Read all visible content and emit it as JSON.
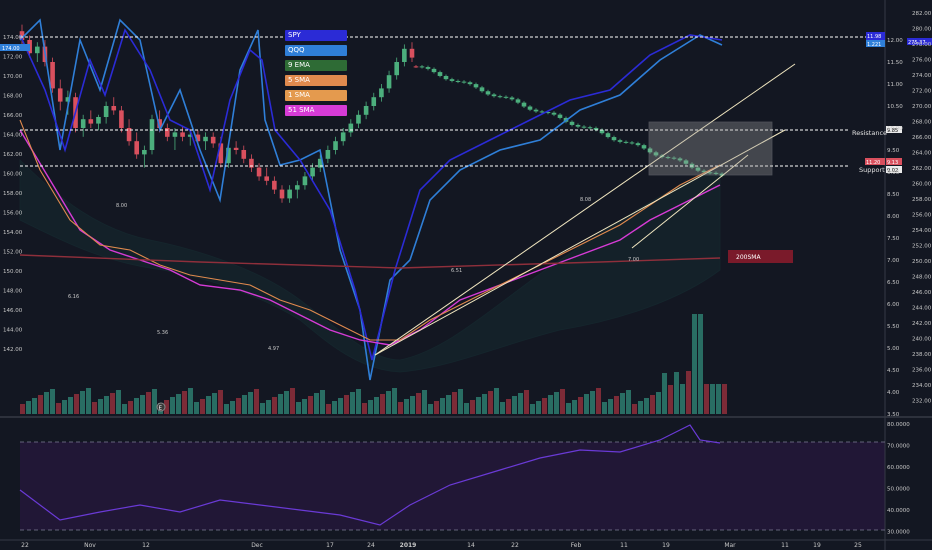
{
  "chart_data": {
    "type": "candlestick",
    "axes": {
      "left_ticks": [
        "174.00",
        "172.00",
        "170.00",
        "168.00",
        "166.00",
        "164.00",
        "162.00",
        "160.00",
        "158.00",
        "156.00",
        "154.00",
        "152.00",
        "150.00",
        "148.00",
        "146.00",
        "144.00",
        "142.00"
      ],
      "right_ticks_outer": [
        "282.00",
        "280.00",
        "278.00",
        "276.00",
        "274.00",
        "272.00",
        "270.00",
        "268.00",
        "266.00",
        "264.00",
        "262.00",
        "260.00",
        "258.00",
        "256.00",
        "254.00",
        "252.00",
        "250.00",
        "248.00",
        "246.00",
        "244.00",
        "242.00",
        "240.00",
        "238.00",
        "236.00",
        "234.00",
        "232.00"
      ],
      "right_ticks_inner": [
        "12.00",
        "11.50",
        "11.00",
        "10.50",
        "10.00",
        "9.50",
        "9.00",
        "8.50",
        "8.00",
        "7.50",
        "7.00",
        "6.50",
        "6.00",
        "5.50",
        "5.00",
        "4.50",
        "4.00",
        "3.50"
      ],
      "x_ticks": [
        "22",
        "Nov",
        "12",
        "Dec",
        "17",
        "24",
        "2019",
        "14",
        "22",
        "Feb",
        "11",
        "19",
        "Mar",
        "11",
        "19",
        "25"
      ],
      "rsi_ticks": [
        "80.0000",
        "70.0000",
        "60.0000",
        "50.0000",
        "40.0000",
        "30.0000"
      ]
    },
    "legend": [
      {
        "label": "SPY",
        "color": "#2b2bd6"
      },
      {
        "label": "QQQ",
        "color": "#2f7fd8"
      },
      {
        "label": "9 EMA",
        "color": "#2e6b35"
      },
      {
        "label": "5 SMA",
        "color": "#e08a4e"
      },
      {
        "label": "1 SMA",
        "color": "#e49a4e"
      },
      {
        "label": "51 SMA",
        "color": "#d63bd6"
      }
    ],
    "annotations": {
      "resistance": "Resistance",
      "support": "Support",
      "sma200": "200SMA",
      "e_marker": "E"
    },
    "price_labels": {
      "left_tag": "174.00",
      "right_tag_a": "11.98",
      "right_tag_b": "1.221",
      "right_tag_c": "275.37",
      "res_tag": "9.85",
      "sup_tag1": "11.20",
      "sup_tag2": "9.13",
      "sup_tag3": "9.02"
    },
    "point_labels": [
      "8.00",
      "6.16",
      "5.36",
      "4.97",
      "6.51",
      "8.08",
      "7.00"
    ],
    "candles": [
      [
        12.2,
        12.35,
        11.9,
        12.0
      ],
      [
        12.0,
        12.1,
        11.6,
        11.7
      ],
      [
        11.7,
        11.95,
        11.5,
        11.85
      ],
      [
        11.85,
        12.0,
        11.4,
        11.5
      ],
      [
        11.5,
        11.6,
        10.8,
        10.9
      ],
      [
        10.9,
        11.1,
        10.4,
        10.6
      ],
      [
        10.6,
        10.85,
        10.3,
        10.7
      ],
      [
        10.7,
        10.8,
        9.9,
        10.0
      ],
      [
        10.0,
        10.3,
        9.8,
        10.2
      ],
      [
        10.2,
        10.4,
        10.0,
        10.1
      ],
      [
        10.1,
        10.3,
        9.95,
        10.25
      ],
      [
        10.25,
        10.6,
        10.1,
        10.5
      ],
      [
        10.5,
        10.7,
        10.3,
        10.4
      ],
      [
        10.4,
        10.5,
        9.9,
        10.0
      ],
      [
        10.0,
        10.2,
        9.6,
        9.7
      ],
      [
        9.7,
        9.9,
        9.3,
        9.4
      ],
      [
        9.4,
        9.6,
        9.1,
        9.5
      ],
      [
        9.5,
        10.3,
        9.4,
        10.2
      ],
      [
        10.2,
        10.4,
        9.9,
        10.0
      ],
      [
        10.0,
        10.1,
        9.7,
        9.8
      ],
      [
        9.8,
        10.0,
        9.5,
        9.9
      ],
      [
        9.9,
        10.05,
        9.7,
        9.8
      ],
      [
        9.8,
        9.95,
        9.6,
        9.85
      ],
      [
        9.85,
        9.95,
        9.6,
        9.7
      ],
      [
        9.7,
        9.9,
        9.5,
        9.8
      ],
      [
        9.8,
        9.9,
        9.55,
        9.65
      ],
      [
        9.65,
        9.8,
        9.1,
        9.2
      ],
      [
        9.2,
        9.6,
        9.1,
        9.55
      ],
      [
        9.55,
        9.7,
        9.4,
        9.5
      ],
      [
        9.5,
        9.6,
        9.2,
        9.3
      ],
      [
        9.3,
        9.4,
        9.0,
        9.1
      ],
      [
        9.1,
        9.2,
        8.8,
        8.9
      ],
      [
        8.9,
        9.1,
        8.7,
        8.8
      ],
      [
        8.8,
        8.9,
        8.5,
        8.6
      ],
      [
        8.6,
        8.7,
        8.3,
        8.4
      ],
      [
        8.4,
        8.7,
        8.3,
        8.6
      ],
      [
        8.6,
        8.8,
        8.4,
        8.7
      ],
      [
        8.7,
        9.0,
        8.6,
        8.9
      ],
      [
        8.9,
        9.2,
        8.8,
        9.1
      ],
      [
        9.1,
        9.4,
        9.0,
        9.3
      ],
      [
        9.3,
        9.6,
        9.2,
        9.5
      ],
      [
        9.5,
        9.8,
        9.4,
        9.7
      ],
      [
        9.7,
        10.0,
        9.6,
        9.9
      ],
      [
        9.9,
        10.2,
        9.8,
        10.1
      ],
      [
        10.1,
        10.4,
        10.0,
        10.3
      ],
      [
        10.3,
        10.6,
        10.2,
        10.5
      ],
      [
        10.5,
        10.8,
        10.4,
        10.7
      ],
      [
        10.7,
        11.0,
        10.6,
        10.9
      ],
      [
        10.9,
        11.3,
        10.8,
        11.2
      ],
      [
        11.2,
        11.6,
        11.1,
        11.5
      ],
      [
        11.5,
        11.9,
        11.4,
        11.8
      ],
      [
        11.8,
        11.95,
        11.5,
        11.6
      ]
    ]
  }
}
